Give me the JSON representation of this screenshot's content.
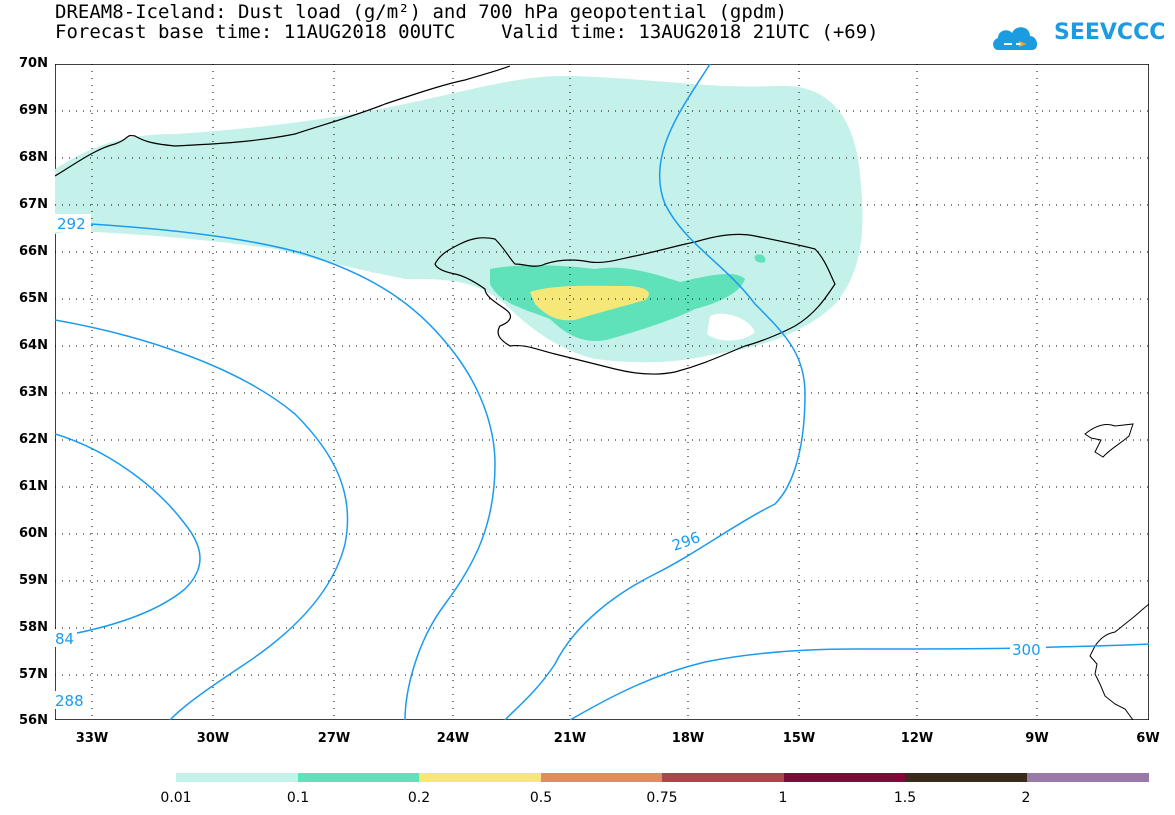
{
  "title": {
    "line1": "DREAM8-Iceland: Dust load (g/m²) and 700 hPa geopotential (gpdm)",
    "line2": "Forecast base time: 11AUG2018 00UTC    Valid time: 13AUG2018 21UTC (+69)"
  },
  "logo": {
    "text": "SEEVCCC",
    "icon": "cloud-logo-icon",
    "color": "#1b9be0"
  },
  "map": {
    "lat_labels": [
      "70N",
      "69N",
      "68N",
      "67N",
      "66N",
      "65N",
      "64N",
      "63N",
      "62N",
      "61N",
      "60N",
      "59N",
      "58N",
      "57N",
      "56N"
    ],
    "lon_labels": [
      "33W",
      "30W",
      "27W",
      "24W",
      "21W",
      "18W",
      "15W",
      "12W",
      "9W",
      "6W"
    ],
    "contour_labels": [
      "292",
      "296",
      "300",
      "84",
      "288"
    ],
    "contour_color": "#1a9bf0"
  },
  "colorbar": {
    "labels": [
      "0.01",
      "0.1",
      "0.2",
      "0.5",
      "0.75",
      "1",
      "1.5",
      "2"
    ],
    "colors": [
      "#c4f2ea",
      "#5fe1b9",
      "#f5e878",
      "#dd8c63",
      "#a8484a",
      "#7e0a3a",
      "#3a2a1c",
      "#9a78a8"
    ]
  },
  "dust_colors": {
    "low": "#c4f2ea",
    "mid": "#5fe1b9",
    "high": "#f5e878"
  }
}
